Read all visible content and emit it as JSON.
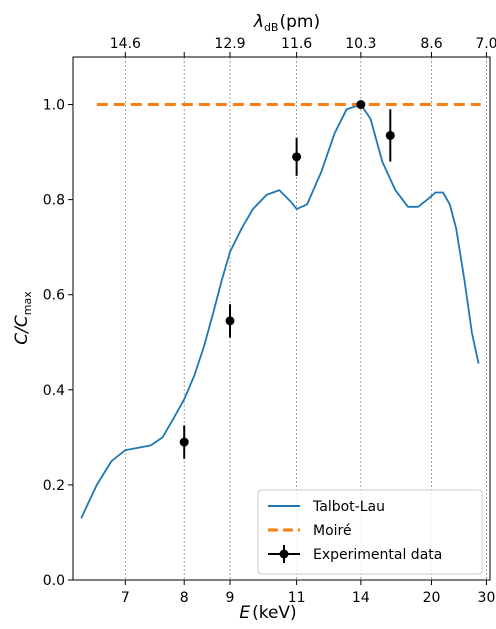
{
  "chart_data": {
    "type": "line",
    "xlabel": "E (keV)",
    "xlabel_main": "E",
    "xlabel_unit": "(keV)",
    "x_scale": "reciprocal",
    "xlim": [
      6.3,
      31
    ],
    "x_ticks": [
      7,
      8,
      9,
      11,
      14,
      20,
      30
    ],
    "x_tick_labels": [
      "7",
      "8",
      "9",
      "11",
      "14",
      "20",
      "30"
    ],
    "top_axis": {
      "label": "λdB (pm)",
      "label_main": "λ",
      "label_sub": "dB",
      "label_unit": "(pm)",
      "ticks_at_E": [
        7,
        8,
        9,
        11,
        14,
        20,
        30
      ],
      "tick_labels": [
        "14.6",
        "12.9",
        "11.6",
        "10.3",
        "8.6",
        "7.0"
      ],
      "tick_positions_E": [
        7,
        9,
        11,
        14,
        20,
        30
      ]
    },
    "ylabel": "C/Cmax",
    "ylabel_main": "C/C",
    "ylabel_sub": "max",
    "ylim": [
      0.0,
      1.1
    ],
    "y_ticks": [
      0.0,
      0.2,
      0.4,
      0.6,
      0.8,
      1.0
    ],
    "y_tick_labels": [
      "0.0",
      "0.2",
      "0.4",
      "0.6",
      "0.8",
      "1.0"
    ],
    "grid": "vertical dotted lines at x ticks",
    "legend_position": "bottom-right",
    "series": [
      {
        "name": "Talbot-Lau",
        "kind": "line",
        "color": "#1f77b4",
        "x": [
          6.4,
          6.6,
          6.8,
          7.0,
          7.2,
          7.4,
          7.6,
          7.8,
          8.0,
          8.2,
          8.4,
          8.6,
          8.8,
          9.0,
          9.3,
          9.6,
          10.0,
          10.4,
          10.8,
          11.0,
          11.4,
          12.0,
          12.6,
          13.2,
          14.0,
          14.6,
          15.4,
          16.4,
          17.5,
          18.5,
          19.5,
          20.5,
          21.5,
          22.5,
          23.5,
          25.0,
          26.5,
          28.0
        ],
        "y": [
          0.13,
          0.2,
          0.25,
          0.273,
          0.278,
          0.283,
          0.3,
          0.34,
          0.38,
          0.43,
          0.49,
          0.56,
          0.63,
          0.69,
          0.74,
          0.78,
          0.81,
          0.82,
          0.795,
          0.78,
          0.79,
          0.86,
          0.94,
          0.99,
          1.0,
          0.97,
          0.88,
          0.82,
          0.785,
          0.785,
          0.8,
          0.815,
          0.815,
          0.79,
          0.74,
          0.63,
          0.52,
          0.455
        ]
      },
      {
        "name": "Moiré",
        "kind": "dashed",
        "color": "#ff7f0e",
        "x": [
          6.6,
          28.5
        ],
        "y": [
          1.0,
          1.0
        ]
      },
      {
        "name": "Experimental data",
        "kind": "errorbar",
        "color": "#000000",
        "points": [
          {
            "x": 8,
            "y": 0.29,
            "err": 0.035
          },
          {
            "x": 9,
            "y": 0.545,
            "err": 0.035
          },
          {
            "x": 11,
            "y": 0.89,
            "err": 0.04
          },
          {
            "x": 14,
            "y": 1.0,
            "err": 0.0
          },
          {
            "x": 16,
            "y": 0.935,
            "err": 0.055
          }
        ]
      }
    ]
  }
}
